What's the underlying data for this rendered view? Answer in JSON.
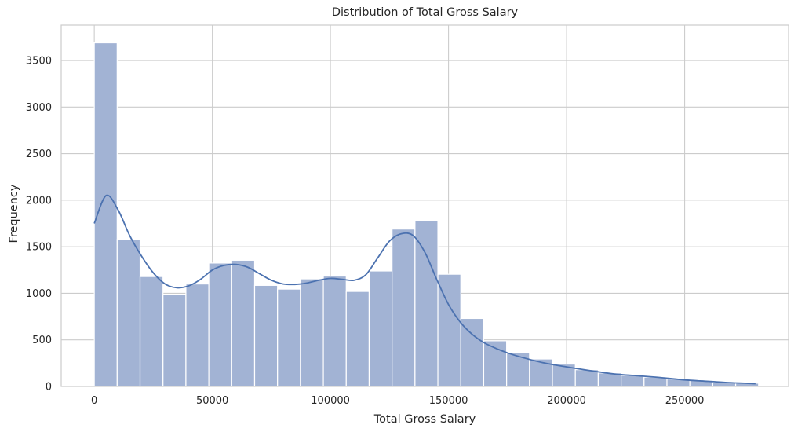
{
  "chart_data": {
    "type": "bar",
    "subtype": "histogram-with-kde",
    "title": "Distribution of Total Gross Salary",
    "xlabel": "Total Gross Salary",
    "ylabel": "Frequency",
    "xlim": [
      -14000,
      294000
    ],
    "ylim": [
      0,
      3880
    ],
    "x_ticks": [
      0,
      50000,
      100000,
      150000,
      200000,
      250000
    ],
    "y_ticks": [
      0,
      500,
      1000,
      1500,
      2000,
      2500,
      3000,
      3500
    ],
    "grid": true,
    "bins": [
      {
        "x0": 0,
        "x1": 9700,
        "count": 3690
      },
      {
        "x0": 9700,
        "x1": 19400,
        "count": 1580
      },
      {
        "x0": 19400,
        "x1": 29100,
        "count": 1180
      },
      {
        "x0": 29100,
        "x1": 38800,
        "count": 985
      },
      {
        "x0": 38800,
        "x1": 48500,
        "count": 1100
      },
      {
        "x0": 48500,
        "x1": 58200,
        "count": 1325
      },
      {
        "x0": 58200,
        "x1": 67900,
        "count": 1355
      },
      {
        "x0": 67900,
        "x1": 77600,
        "count": 1085
      },
      {
        "x0": 77600,
        "x1": 87300,
        "count": 1045
      },
      {
        "x0": 87300,
        "x1": 97000,
        "count": 1155
      },
      {
        "x0": 97000,
        "x1": 106700,
        "count": 1185
      },
      {
        "x0": 106700,
        "x1": 116400,
        "count": 1020
      },
      {
        "x0": 116400,
        "x1": 126100,
        "count": 1240
      },
      {
        "x0": 126100,
        "x1": 135800,
        "count": 1690
      },
      {
        "x0": 135800,
        "x1": 145500,
        "count": 1780
      },
      {
        "x0": 145500,
        "x1": 155200,
        "count": 1205
      },
      {
        "x0": 155200,
        "x1": 164900,
        "count": 730
      },
      {
        "x0": 164900,
        "x1": 174600,
        "count": 490
      },
      {
        "x0": 174600,
        "x1": 184300,
        "count": 360
      },
      {
        "x0": 184300,
        "x1": 194000,
        "count": 295
      },
      {
        "x0": 194000,
        "x1": 203700,
        "count": 240
      },
      {
        "x0": 203700,
        "x1": 213400,
        "count": 180
      },
      {
        "x0": 213400,
        "x1": 223100,
        "count": 145
      },
      {
        "x0": 223100,
        "x1": 232800,
        "count": 120
      },
      {
        "x0": 232800,
        "x1": 242500,
        "count": 100
      },
      {
        "x0": 242500,
        "x1": 252200,
        "count": 80
      },
      {
        "x0": 252200,
        "x1": 261900,
        "count": 65
      },
      {
        "x0": 261900,
        "x1": 271600,
        "count": 45
      },
      {
        "x0": 271600,
        "x1": 281300,
        "count": 35
      }
    ],
    "kde": {
      "x": [
        0,
        5000,
        10000,
        15000,
        20000,
        25000,
        30000,
        35000,
        40000,
        45000,
        50000,
        55000,
        60000,
        65000,
        70000,
        75000,
        80000,
        85000,
        90000,
        95000,
        100000,
        105000,
        110000,
        115000,
        120000,
        125000,
        130000,
        135000,
        140000,
        145000,
        150000,
        155000,
        160000,
        165000,
        170000,
        175000,
        180000,
        190000,
        200000,
        210000,
        220000,
        230000,
        240000,
        250000,
        260000,
        270000,
        280000
      ],
      "y": [
        1750,
        2050,
        1900,
        1620,
        1400,
        1220,
        1100,
        1060,
        1080,
        1150,
        1250,
        1300,
        1310,
        1280,
        1210,
        1140,
        1100,
        1095,
        1110,
        1140,
        1160,
        1150,
        1140,
        1200,
        1380,
        1560,
        1640,
        1620,
        1440,
        1150,
        880,
        690,
        560,
        470,
        410,
        360,
        320,
        255,
        210,
        170,
        135,
        115,
        95,
        70,
        55,
        40,
        30
      ]
    },
    "colors": {
      "bar_fill": "#a2b3d4",
      "bar_edge": "#ffffff",
      "kde_line": "#4c72b0",
      "grid": "#cccccc",
      "axes_edge": "#cccccc"
    }
  }
}
